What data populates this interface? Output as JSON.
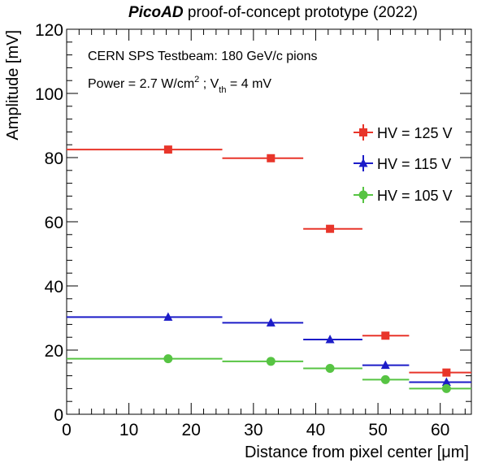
{
  "chart_data": {
    "type": "scatter",
    "title": {
      "bold": "PicoAD",
      "rest": " proof-of-concept prototype (2022)"
    },
    "xlabel": "Distance from pixel center [μm]",
    "ylabel": "Amplitude [mV]",
    "xlim": [
      0,
      65
    ],
    "ylim": [
      0,
      120
    ],
    "xticks": [
      0,
      10,
      20,
      30,
      40,
      50,
      60
    ],
    "yticks": [
      0,
      20,
      40,
      60,
      80,
      100,
      120
    ],
    "annotations": {
      "line1": "CERN SPS Testbeam: 180 GeV/c pions",
      "line2_a": "Power = 2.7 W/cm",
      "line2_sup": "2",
      "line2_b": " ; V",
      "line2_sub": "th",
      "line2_c": " = 4 mV"
    },
    "series": [
      {
        "name": "HV = 125 V",
        "color": "#e8352a",
        "marker": "square",
        "points": [
          {
            "x": 16.3,
            "y": 82.5,
            "xerr": [
              0,
              25
            ]
          },
          {
            "x": 32.8,
            "y": 79.8,
            "xerr": [
              25,
              38
            ]
          },
          {
            "x": 42.3,
            "y": 57.8,
            "xerr": [
              38,
              47.5
            ]
          },
          {
            "x": 51.2,
            "y": 24.5,
            "xerr": [
              47.5,
              55
            ]
          },
          {
            "x": 61.0,
            "y": 13.0,
            "xerr": [
              55,
              65
            ]
          }
        ]
      },
      {
        "name": "HV = 115 V",
        "color": "#1c1cc8",
        "marker": "triangle",
        "points": [
          {
            "x": 16.3,
            "y": 30.3,
            "xerr": [
              0,
              25
            ]
          },
          {
            "x": 32.8,
            "y": 28.5,
            "xerr": [
              25,
              38
            ]
          },
          {
            "x": 42.3,
            "y": 23.3,
            "xerr": [
              38,
              47.5
            ]
          },
          {
            "x": 51.2,
            "y": 15.3,
            "xerr": [
              47.5,
              55
            ]
          },
          {
            "x": 61.0,
            "y": 10.0,
            "xerr": [
              55,
              65
            ]
          }
        ]
      },
      {
        "name": "HV = 105 V",
        "color": "#57c443",
        "marker": "circle",
        "points": [
          {
            "x": 16.3,
            "y": 17.3,
            "xerr": [
              0,
              25
            ]
          },
          {
            "x": 32.8,
            "y": 16.5,
            "xerr": [
              25,
              38
            ]
          },
          {
            "x": 42.3,
            "y": 14.3,
            "xerr": [
              38,
              47.5
            ]
          },
          {
            "x": 51.2,
            "y": 10.8,
            "xerr": [
              47.5,
              55
            ]
          },
          {
            "x": 61.0,
            "y": 8.0,
            "xerr": [
              55,
              65
            ]
          }
        ]
      }
    ],
    "legend": {
      "placement": "right"
    }
  }
}
